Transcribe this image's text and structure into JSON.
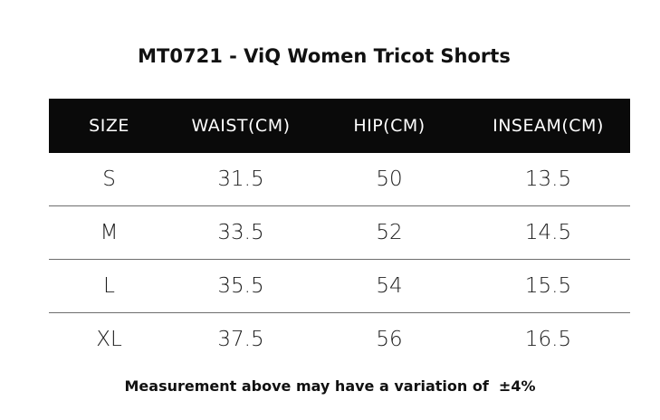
{
  "title": "MT0721 - ViQ Women Tricot Shorts",
  "table": {
    "headers": [
      "SIZE",
      "WAIST(CM)",
      "HIP(CM)",
      "INSEAM(CM)"
    ],
    "rows": [
      [
        "S",
        "31.5",
        "50",
        "13.5"
      ],
      [
        "M",
        "33.5",
        "52",
        "14.5"
      ],
      [
        "L",
        "35.5",
        "54",
        "15.5"
      ],
      [
        "XL",
        "37.5",
        "56",
        "16.5"
      ]
    ]
  },
  "note": "Measurement above may have a variation of  ±4%"
}
